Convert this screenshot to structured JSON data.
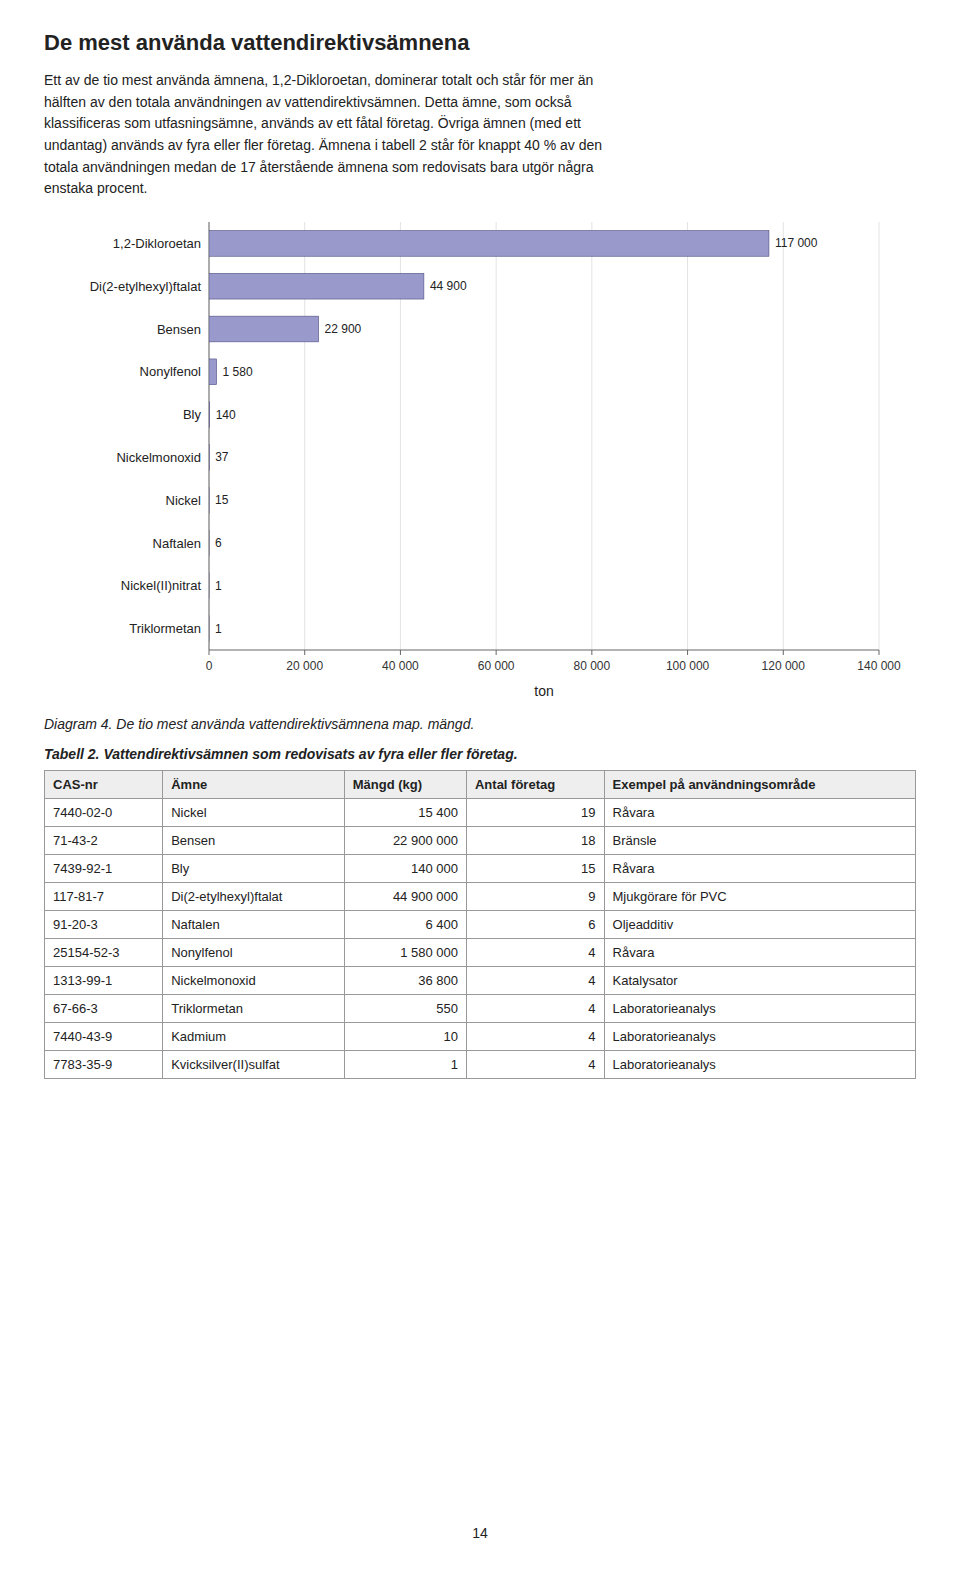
{
  "chart_data": {
    "type": "bar",
    "orientation": "horizontal",
    "title": "De mest använda vattendirektivsämnena",
    "categories": [
      "1,2-Dikloroetan",
      "Di(2-etylhexyl)ftalat",
      "Bensen",
      "Nonylfenol",
      "Bly",
      "Nickelmonoxid",
      "Nickel",
      "Naftalen",
      "Nickel(II)nitrat",
      "Triklormetan"
    ],
    "values": [
      117000,
      44900,
      22900,
      1580,
      140,
      37,
      15,
      6,
      1,
      1
    ],
    "value_labels": [
      "117 000",
      "44 900",
      "22 900",
      "1 580",
      "140",
      "37",
      "15",
      "6",
      "1",
      "1"
    ],
    "data_labels": true,
    "color": "#9999cc",
    "xlabel": "ton",
    "xlim": [
      0,
      140000
    ],
    "xticks": [
      0,
      {
        "value": 20000,
        "label": "20 000"
      },
      {
        "value": 40000,
        "label": "40 000"
      },
      {
        "value": 60000,
        "label": "60 000"
      },
      {
        "value": 80000,
        "label": "80 000"
      },
      {
        "value": 100000,
        "label": "100 000"
      },
      {
        "value": 120000,
        "label": "120 000"
      },
      {
        "value": 140000,
        "label": "140 000"
      }
    ],
    "grid": true
  },
  "body_text": "Ett av de tio mest använda ämnena, 1,2-Dikloroetan, dominerar totalt och står för mer än\nhälften av den totala användningen av vattendirektivsämnen. Detta ämne, som också\nklassificeras som utfasningsämne, används av ett fåtal företag. Övriga ämnen (med ett\nundantag) används av fyra eller fler företag. Ämnena i tabell 2 står för knappt 40 % av den\ntotala användningen medan de 17 återstående ämnena som redovisats bara utgör några\nenstaka procent.",
  "diagram_caption": "Diagram 4. De tio mest använda vattendirektivsämnena map. mängd.",
  "table_title": "Tabell 2. Vattendirektivsämnen som redovisats av fyra eller fler företag.",
  "table_headers": [
    "CAS-nr",
    "Ämne",
    "Mängd (kg)",
    "Antal företag",
    "Exempel på användningsområde"
  ],
  "table_rows": [
    [
      "7440-02-0",
      "Nickel",
      "15 400",
      "19",
      "Råvara"
    ],
    [
      "71-43-2",
      "Bensen",
      "22 900 000",
      "18",
      "Bränsle"
    ],
    [
      "7439-92-1",
      "Bly",
      "140 000",
      "15",
      "Råvara"
    ],
    [
      "117-81-7",
      "Di(2-etylhexyl)ftalat",
      "44 900 000",
      "9",
      "Mjukgörare för PVC"
    ],
    [
      "91-20-3",
      "Naftalen",
      "6 400",
      "6",
      "Oljeadditiv"
    ],
    [
      "25154-52-3",
      "Nonylfenol",
      "1 580 000",
      "4",
      "Råvara"
    ],
    [
      "1313-99-1",
      "Nickelmonoxid",
      "36 800",
      "4",
      "Katalysator"
    ],
    [
      "67-66-3",
      "Triklormetan",
      "550",
      "4",
      "Laboratorieanalys"
    ],
    [
      "7440-43-9",
      "Kadmium",
      "10",
      "4",
      "Laboratorieanalys"
    ],
    [
      "7783-35-9",
      "Kvicksilver(II)sulfat",
      "1",
      "4",
      "Laboratorieanalys"
    ]
  ],
  "page_number": "14"
}
